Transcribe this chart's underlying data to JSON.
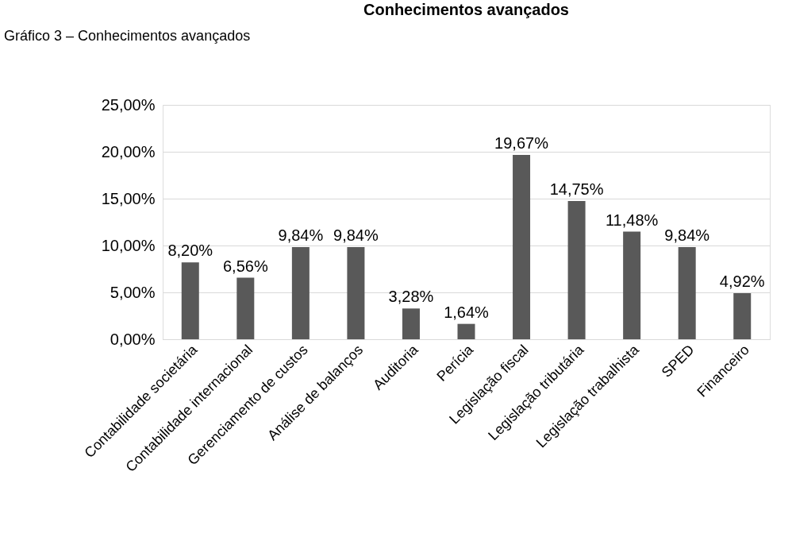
{
  "chart_data": {
    "type": "bar",
    "title": "Conhecimentos avançados",
    "annotations": [
      "Gráfico 3 – Conhecimentos avançados"
    ],
    "categories": [
      "Contabilidade societária",
      "Contabilidade internacional",
      "Gerenciamento de custos",
      "Análise de balanços",
      "Auditoria",
      "Perícia",
      "Legislação fiscal",
      "Legislação tributária",
      "Legislação trabalhista",
      "SPED",
      "Financeiro"
    ],
    "values": [
      8.2,
      6.56,
      9.84,
      9.84,
      3.28,
      1.64,
      19.67,
      14.75,
      11.48,
      9.84,
      4.92
    ],
    "value_labels": [
      "8,20%",
      "6,56%",
      "9,84%",
      "9,84%",
      "3,28%",
      "1,64%",
      "19,67%",
      "14,75%",
      "11,48%",
      "9,84%",
      "4,92%"
    ],
    "color": "#595959",
    "ylim": [
      0,
      25
    ],
    "yticks": [
      {
        "value": 0,
        "label": "0,00%"
      },
      {
        "value": 5,
        "label": "5,00%"
      },
      {
        "value": 10,
        "label": "10,00%"
      },
      {
        "value": 15,
        "label": "15,00%"
      },
      {
        "value": 20,
        "label": "20,00%"
      },
      {
        "value": 25,
        "label": "25,00%"
      }
    ],
    "grid": "y",
    "legend": false
  }
}
